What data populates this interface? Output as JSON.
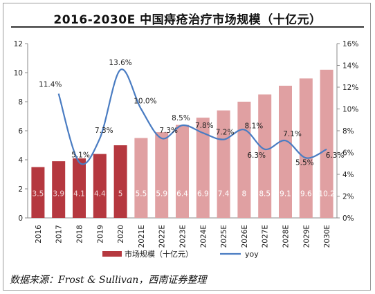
{
  "title": "2016-2030E 中国痔疮治疗市场规模（十亿元）",
  "source": "数据来源：Frost & Sullivan，西南证券整理",
  "colors": {
    "hist_bar": "#b5383f",
    "proj_bar": "#e0a0a2",
    "line": "#4a7cc2",
    "hist_label": "#f3d6d7",
    "proj_label": "#ffffff"
  },
  "chart_data": {
    "type": "bar+line",
    "title": "2016-2030E 中国痔疮治疗市场规模（十亿元）",
    "categories": [
      "2016",
      "2017",
      "2018",
      "2019",
      "2020",
      "2021E",
      "2022E",
      "2023E",
      "2024E",
      "2025E",
      "2026E",
      "2027E",
      "2028E",
      "2029E",
      "2030E"
    ],
    "series": [
      {
        "name": "市场规模（十亿元）",
        "axis": "left",
        "type": "bar",
        "values": [
          3.5,
          3.9,
          4.1,
          4.4,
          5,
          5.5,
          5.9,
          6.4,
          6.9,
          7.4,
          8,
          8.5,
          9.1,
          9.6,
          10.2
        ],
        "labels": [
          "3.5",
          "3.9",
          "4.1",
          "4.4",
          "5",
          "5.5",
          "5.9",
          "6.4",
          "6.9",
          "7.4",
          "8",
          "8.5",
          "9.1",
          "9.6",
          "10.2"
        ],
        "projected_from_index": 5
      },
      {
        "name": "yoy",
        "axis": "right",
        "type": "line",
        "values": [
          null,
          11.4,
          5.1,
          7.3,
          13.6,
          10.0,
          7.3,
          8.5,
          7.8,
          7.2,
          8.1,
          6.3,
          7.1,
          5.5,
          6.3
        ],
        "labels": [
          "",
          "11.4%",
          "5.1%",
          "7.3%",
          "13.6%",
          "10.0%",
          "7.3%",
          "8.5%",
          "7.8%",
          "7.2%",
          "8.1%",
          "6.3%",
          "7.1%",
          "5.5%",
          "6.3%"
        ]
      }
    ],
    "left_axis": {
      "ylim": [
        0,
        12
      ],
      "ticks": [
        "0",
        "2",
        "4",
        "6",
        "8",
        "10",
        "12"
      ]
    },
    "right_axis": {
      "ylim": [
        0,
        16
      ],
      "ticks": [
        "0%",
        "2%",
        "4%",
        "6%",
        "8%",
        "10%",
        "12%",
        "14%",
        "16%"
      ]
    },
    "grid": false,
    "legend": {
      "position": "bottom",
      "items": [
        "市场规模（十亿元）",
        "yoy"
      ]
    }
  }
}
